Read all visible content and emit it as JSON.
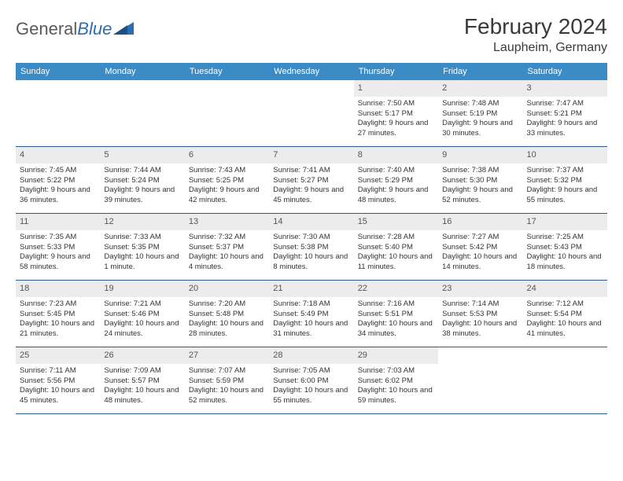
{
  "logo": {
    "text1": "General",
    "text2": "Blue"
  },
  "title": "February 2024",
  "location": "Laupheim, Germany",
  "colors": {
    "header_bg": "#3b8bc6",
    "header_text": "#ffffff",
    "daynum_bg": "#ececec",
    "daynum_text": "#555555",
    "row_border": "#2d5a8c",
    "body_text": "#333333",
    "logo_gray": "#5a5a5a",
    "logo_blue": "#2a6db0"
  },
  "weekdays": [
    "Sunday",
    "Monday",
    "Tuesday",
    "Wednesday",
    "Thursday",
    "Friday",
    "Saturday"
  ],
  "weeks": [
    [
      {
        "n": "",
        "sunrise": "",
        "sunset": "",
        "daylight": ""
      },
      {
        "n": "",
        "sunrise": "",
        "sunset": "",
        "daylight": ""
      },
      {
        "n": "",
        "sunrise": "",
        "sunset": "",
        "daylight": ""
      },
      {
        "n": "",
        "sunrise": "",
        "sunset": "",
        "daylight": ""
      },
      {
        "n": "1",
        "sunrise": "Sunrise: 7:50 AM",
        "sunset": "Sunset: 5:17 PM",
        "daylight": "Daylight: 9 hours and 27 minutes."
      },
      {
        "n": "2",
        "sunrise": "Sunrise: 7:48 AM",
        "sunset": "Sunset: 5:19 PM",
        "daylight": "Daylight: 9 hours and 30 minutes."
      },
      {
        "n": "3",
        "sunrise": "Sunrise: 7:47 AM",
        "sunset": "Sunset: 5:21 PM",
        "daylight": "Daylight: 9 hours and 33 minutes."
      }
    ],
    [
      {
        "n": "4",
        "sunrise": "Sunrise: 7:45 AM",
        "sunset": "Sunset: 5:22 PM",
        "daylight": "Daylight: 9 hours and 36 minutes."
      },
      {
        "n": "5",
        "sunrise": "Sunrise: 7:44 AM",
        "sunset": "Sunset: 5:24 PM",
        "daylight": "Daylight: 9 hours and 39 minutes."
      },
      {
        "n": "6",
        "sunrise": "Sunrise: 7:43 AM",
        "sunset": "Sunset: 5:25 PM",
        "daylight": "Daylight: 9 hours and 42 minutes."
      },
      {
        "n": "7",
        "sunrise": "Sunrise: 7:41 AM",
        "sunset": "Sunset: 5:27 PM",
        "daylight": "Daylight: 9 hours and 45 minutes."
      },
      {
        "n": "8",
        "sunrise": "Sunrise: 7:40 AM",
        "sunset": "Sunset: 5:29 PM",
        "daylight": "Daylight: 9 hours and 48 minutes."
      },
      {
        "n": "9",
        "sunrise": "Sunrise: 7:38 AM",
        "sunset": "Sunset: 5:30 PM",
        "daylight": "Daylight: 9 hours and 52 minutes."
      },
      {
        "n": "10",
        "sunrise": "Sunrise: 7:37 AM",
        "sunset": "Sunset: 5:32 PM",
        "daylight": "Daylight: 9 hours and 55 minutes."
      }
    ],
    [
      {
        "n": "11",
        "sunrise": "Sunrise: 7:35 AM",
        "sunset": "Sunset: 5:33 PM",
        "daylight": "Daylight: 9 hours and 58 minutes."
      },
      {
        "n": "12",
        "sunrise": "Sunrise: 7:33 AM",
        "sunset": "Sunset: 5:35 PM",
        "daylight": "Daylight: 10 hours and 1 minute."
      },
      {
        "n": "13",
        "sunrise": "Sunrise: 7:32 AM",
        "sunset": "Sunset: 5:37 PM",
        "daylight": "Daylight: 10 hours and 4 minutes."
      },
      {
        "n": "14",
        "sunrise": "Sunrise: 7:30 AM",
        "sunset": "Sunset: 5:38 PM",
        "daylight": "Daylight: 10 hours and 8 minutes."
      },
      {
        "n": "15",
        "sunrise": "Sunrise: 7:28 AM",
        "sunset": "Sunset: 5:40 PM",
        "daylight": "Daylight: 10 hours and 11 minutes."
      },
      {
        "n": "16",
        "sunrise": "Sunrise: 7:27 AM",
        "sunset": "Sunset: 5:42 PM",
        "daylight": "Daylight: 10 hours and 14 minutes."
      },
      {
        "n": "17",
        "sunrise": "Sunrise: 7:25 AM",
        "sunset": "Sunset: 5:43 PM",
        "daylight": "Daylight: 10 hours and 18 minutes."
      }
    ],
    [
      {
        "n": "18",
        "sunrise": "Sunrise: 7:23 AM",
        "sunset": "Sunset: 5:45 PM",
        "daylight": "Daylight: 10 hours and 21 minutes."
      },
      {
        "n": "19",
        "sunrise": "Sunrise: 7:21 AM",
        "sunset": "Sunset: 5:46 PM",
        "daylight": "Daylight: 10 hours and 24 minutes."
      },
      {
        "n": "20",
        "sunrise": "Sunrise: 7:20 AM",
        "sunset": "Sunset: 5:48 PM",
        "daylight": "Daylight: 10 hours and 28 minutes."
      },
      {
        "n": "21",
        "sunrise": "Sunrise: 7:18 AM",
        "sunset": "Sunset: 5:49 PM",
        "daylight": "Daylight: 10 hours and 31 minutes."
      },
      {
        "n": "22",
        "sunrise": "Sunrise: 7:16 AM",
        "sunset": "Sunset: 5:51 PM",
        "daylight": "Daylight: 10 hours and 34 minutes."
      },
      {
        "n": "23",
        "sunrise": "Sunrise: 7:14 AM",
        "sunset": "Sunset: 5:53 PM",
        "daylight": "Daylight: 10 hours and 38 minutes."
      },
      {
        "n": "24",
        "sunrise": "Sunrise: 7:12 AM",
        "sunset": "Sunset: 5:54 PM",
        "daylight": "Daylight: 10 hours and 41 minutes."
      }
    ],
    [
      {
        "n": "25",
        "sunrise": "Sunrise: 7:11 AM",
        "sunset": "Sunset: 5:56 PM",
        "daylight": "Daylight: 10 hours and 45 minutes."
      },
      {
        "n": "26",
        "sunrise": "Sunrise: 7:09 AM",
        "sunset": "Sunset: 5:57 PM",
        "daylight": "Daylight: 10 hours and 48 minutes."
      },
      {
        "n": "27",
        "sunrise": "Sunrise: 7:07 AM",
        "sunset": "Sunset: 5:59 PM",
        "daylight": "Daylight: 10 hours and 52 minutes."
      },
      {
        "n": "28",
        "sunrise": "Sunrise: 7:05 AM",
        "sunset": "Sunset: 6:00 PM",
        "daylight": "Daylight: 10 hours and 55 minutes."
      },
      {
        "n": "29",
        "sunrise": "Sunrise: 7:03 AM",
        "sunset": "Sunset: 6:02 PM",
        "daylight": "Daylight: 10 hours and 59 minutes."
      },
      {
        "n": "",
        "sunrise": "",
        "sunset": "",
        "daylight": ""
      },
      {
        "n": "",
        "sunrise": "",
        "sunset": "",
        "daylight": ""
      }
    ]
  ]
}
